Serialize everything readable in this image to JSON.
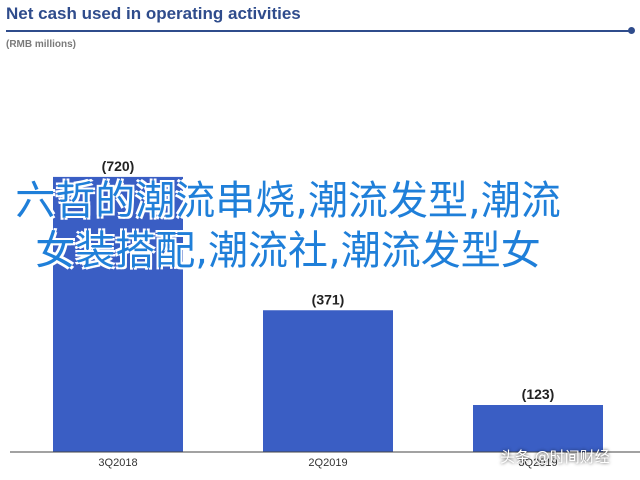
{
  "chart_data": {
    "type": "bar",
    "title": "Net cash used in operating activities",
    "subtitle": "(RMB millions)",
    "categories": [
      "3Q2018",
      "2Q2019",
      "3Q2019"
    ],
    "values": [
      -720,
      -371,
      -123
    ],
    "data_labels": [
      "(720)",
      "(371)",
      "(123)"
    ],
    "ylim": [
      0,
      1060
    ],
    "bar_color": "#3a5ec4",
    "grid": false
  },
  "overlay_text": "六哲的潮流串烧,潮流发型,潮流女装搭配,潮流社,潮流发型女",
  "watermark": "头条 @时间财经",
  "colors": {
    "title": "#2f4c8c",
    "bars": "#3a5ec4",
    "overlay": "#1f7fd9"
  }
}
